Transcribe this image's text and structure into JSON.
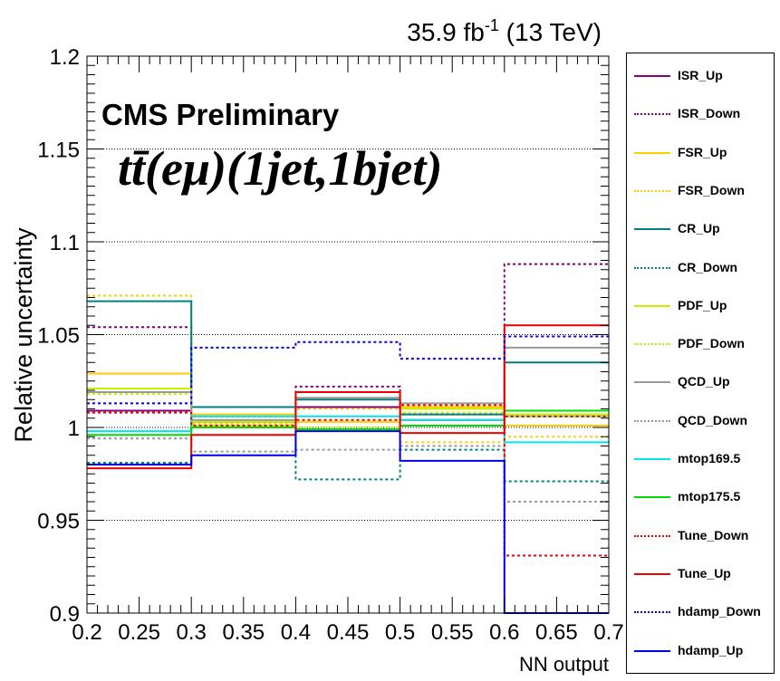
{
  "chart_data": {
    "type": "line",
    "step": true,
    "header": {
      "lumi": "35.9 fb",
      "lumi_sup": "-1",
      "energy": " (13 TeV)"
    },
    "label_cms": "CMS Preliminary",
    "label_process": "tt̄(eμ)(1jet,1bjet)",
    "xlabel": "NN output",
    "ylabel": "Relative uncertainty",
    "xlim": [
      0.2,
      0.7
    ],
    "ylim": [
      0.9,
      1.2
    ],
    "xticks": [
      "0.2",
      "0.25",
      "0.3",
      "0.35",
      "0.4",
      "0.45",
      "0.5",
      "0.55",
      "0.6",
      "0.65",
      "0.7"
    ],
    "yticks": [
      "0.9",
      "0.95",
      "1",
      "1.05",
      "1.1",
      "1.15",
      "1.2"
    ],
    "grid": "horizontal dotted",
    "bin_edges": [
      0.2,
      0.3,
      0.4,
      0.5,
      0.6,
      0.7
    ],
    "series": [
      {
        "name": "ISR_Up",
        "color": "#800080",
        "dash": false,
        "values": [
          1.009,
          1.003,
          1.011,
          1.004,
          1.006
        ]
      },
      {
        "name": "ISR_Down",
        "color": "#800080",
        "dash": true,
        "values": [
          1.054,
          1.006,
          1.022,
          1.007,
          1.088
        ]
      },
      {
        "name": "FSR_Up",
        "color": "#ffcc00",
        "dash": false,
        "values": [
          1.029,
          1.007,
          1.003,
          1.011,
          1.001
        ]
      },
      {
        "name": "FSR_Down",
        "color": "#ffcc00",
        "dash": true,
        "values": [
          1.071,
          1.002,
          1.01,
          0.992,
          0.995
        ]
      },
      {
        "name": "CR_Up",
        "color": "#008080",
        "dash": false,
        "values": [
          1.068,
          1.011,
          1.015,
          1.007,
          1.035
        ]
      },
      {
        "name": "CR_Down",
        "color": "#008080",
        "dash": true,
        "values": [
          0.981,
          1.003,
          0.972,
          0.988,
          0.971
        ]
      },
      {
        "name": "PDF_Up",
        "color": "#ccee00",
        "dash": false,
        "values": [
          1.021,
          1.003,
          0.999,
          1.01,
          1.007
        ]
      },
      {
        "name": "PDF_Down",
        "color": "#ccee00",
        "dash": true,
        "values": [
          1.018,
          1.001,
          1.0,
          1.008,
          1.006
        ]
      },
      {
        "name": "QCD_Up",
        "color": "#999999",
        "dash": false,
        "values": [
          1.019,
          1.004,
          1.016,
          1.013,
          1.043
        ]
      },
      {
        "name": "QCD_Down",
        "color": "#999999",
        "dash": true,
        "values": [
          0.994,
          0.987,
          0.988,
          0.99,
          0.96
        ]
      },
      {
        "name": "mtop169.5",
        "color": "#00e5ee",
        "dash": false,
        "values": [
          0.998,
          1.006,
          1.006,
          1.004,
          0.992
        ]
      },
      {
        "name": "mtop175.5",
        "color": "#00dd00",
        "dash": false,
        "values": [
          0.996,
          1.0,
          0.999,
          1.001,
          1.009
        ]
      },
      {
        "name": "Tune_Down",
        "color": "#ee0000",
        "dash": true,
        "values": [
          1.008,
          1.001,
          1.004,
          1.012,
          0.931
        ]
      },
      {
        "name": "Tune_Up",
        "color": "#ee0000",
        "dash": false,
        "values": [
          0.978,
          0.996,
          1.019,
          0.997,
          1.055
        ]
      },
      {
        "name": "hdamp_Down",
        "color": "#0000ee",
        "dash": true,
        "values": [
          1.013,
          1.043,
          1.046,
          1.037,
          1.049
        ]
      },
      {
        "name": "hdamp_Up",
        "color": "#0000ee",
        "dash": false,
        "values": [
          0.98,
          0.985,
          0.998,
          0.982,
          0.9
        ]
      }
    ]
  }
}
